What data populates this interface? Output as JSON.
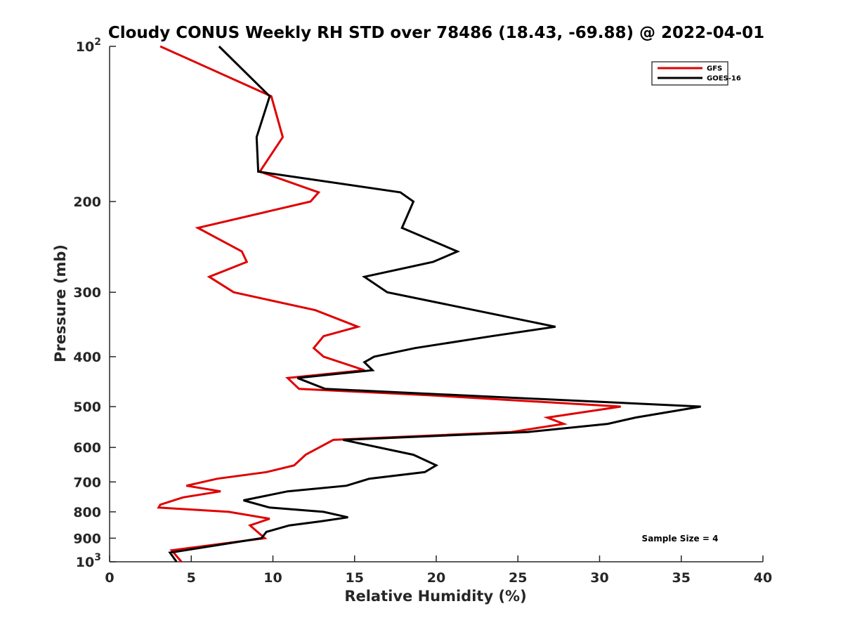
{
  "chart_data": {
    "type": "line",
    "title": "Cloudy CONUS Weekly RH STD over 78486 (18.43, -69.88) @ 2022-04-01",
    "xlabel": "Relative Humidity (%)",
    "ylabel": "Pressure (mb)",
    "xlim": [
      0,
      40
    ],
    "ylim": [
      100,
      1000
    ],
    "y_scale": "log",
    "y_reversed": true,
    "grid": false,
    "legend_position": "top-right",
    "x_ticks": [
      {
        "value": 0,
        "label": "0"
      },
      {
        "value": 5,
        "label": "5"
      },
      {
        "value": 10,
        "label": "10"
      },
      {
        "value": 15,
        "label": "15"
      },
      {
        "value": 20,
        "label": "20"
      },
      {
        "value": 25,
        "label": "25"
      },
      {
        "value": 30,
        "label": "30"
      },
      {
        "value": 35,
        "label": "35"
      },
      {
        "value": 40,
        "label": "40"
      }
    ],
    "y_ticks": [
      {
        "value": 100,
        "base": "10",
        "exp": "2"
      },
      {
        "value": 200,
        "label": "200"
      },
      {
        "value": 300,
        "label": "300"
      },
      {
        "value": 400,
        "label": "400"
      },
      {
        "value": 500,
        "label": "500"
      },
      {
        "value": 600,
        "label": "600"
      },
      {
        "value": 700,
        "label": "700"
      },
      {
        "value": 800,
        "label": "800"
      },
      {
        "value": 900,
        "label": "900"
      },
      {
        "value": 1000,
        "base": "10",
        "exp": "3"
      }
    ],
    "series": [
      {
        "name": "GFS",
        "color": "#e00000",
        "points": [
          {
            "x": 3.1,
            "y": 100
          },
          {
            "x": 9.9,
            "y": 125
          },
          {
            "x": 10.6,
            "y": 150
          },
          {
            "x": 9.2,
            "y": 175
          },
          {
            "x": 12.8,
            "y": 192
          },
          {
            "x": 12.3,
            "y": 200
          },
          {
            "x": 5.4,
            "y": 225
          },
          {
            "x": 8.1,
            "y": 250
          },
          {
            "x": 8.4,
            "y": 262
          },
          {
            "x": 6.1,
            "y": 280
          },
          {
            "x": 7.6,
            "y": 300
          },
          {
            "x": 12.6,
            "y": 325
          },
          {
            "x": 15.2,
            "y": 350
          },
          {
            "x": 13.1,
            "y": 365
          },
          {
            "x": 12.5,
            "y": 385
          },
          {
            "x": 13.1,
            "y": 400
          },
          {
            "x": 15.6,
            "y": 425
          },
          {
            "x": 10.9,
            "y": 440
          },
          {
            "x": 11.6,
            "y": 462
          },
          {
            "x": 19.5,
            "y": 475
          },
          {
            "x": 31.3,
            "y": 500
          },
          {
            "x": 26.8,
            "y": 525
          },
          {
            "x": 27.8,
            "y": 540
          },
          {
            "x": 24.6,
            "y": 560
          },
          {
            "x": 13.7,
            "y": 580
          },
          {
            "x": 12.0,
            "y": 620
          },
          {
            "x": 11.3,
            "y": 650
          },
          {
            "x": 9.6,
            "y": 670
          },
          {
            "x": 6.6,
            "y": 690
          },
          {
            "x": 4.7,
            "y": 712
          },
          {
            "x": 6.8,
            "y": 730
          },
          {
            "x": 4.5,
            "y": 750
          },
          {
            "x": 3.1,
            "y": 775
          },
          {
            "x": 3.0,
            "y": 785
          },
          {
            "x": 7.3,
            "y": 800
          },
          {
            "x": 9.8,
            "y": 825
          },
          {
            "x": 8.6,
            "y": 850
          },
          {
            "x": 9.5,
            "y": 900
          },
          {
            "x": 3.8,
            "y": 950
          },
          {
            "x": 4.4,
            "y": 1000
          }
        ]
      },
      {
        "name": "GOES-16",
        "color": "#000000",
        "points": [
          {
            "x": 6.7,
            "y": 100
          },
          {
            "x": 9.8,
            "y": 125
          },
          {
            "x": 9.0,
            "y": 150
          },
          {
            "x": 9.1,
            "y": 175
          },
          {
            "x": 17.8,
            "y": 192
          },
          {
            "x": 18.6,
            "y": 200
          },
          {
            "x": 17.9,
            "y": 225
          },
          {
            "x": 21.3,
            "y": 250
          },
          {
            "x": 19.8,
            "y": 262
          },
          {
            "x": 15.6,
            "y": 280
          },
          {
            "x": 17.0,
            "y": 300
          },
          {
            "x": 27.3,
            "y": 350
          },
          {
            "x": 23.4,
            "y": 365
          },
          {
            "x": 18.7,
            "y": 385
          },
          {
            "x": 16.2,
            "y": 400
          },
          {
            "x": 15.6,
            "y": 410
          },
          {
            "x": 16.1,
            "y": 425
          },
          {
            "x": 11.5,
            "y": 440
          },
          {
            "x": 13.2,
            "y": 462
          },
          {
            "x": 36.2,
            "y": 500
          },
          {
            "x": 32.2,
            "y": 525
          },
          {
            "x": 30.5,
            "y": 540
          },
          {
            "x": 25.6,
            "y": 560
          },
          {
            "x": 14.3,
            "y": 580
          },
          {
            "x": 18.6,
            "y": 620
          },
          {
            "x": 20.0,
            "y": 650
          },
          {
            "x": 19.3,
            "y": 670
          },
          {
            "x": 15.9,
            "y": 690
          },
          {
            "x": 14.5,
            "y": 712
          },
          {
            "x": 10.9,
            "y": 730
          },
          {
            "x": 8.2,
            "y": 760
          },
          {
            "x": 9.8,
            "y": 785
          },
          {
            "x": 13.1,
            "y": 800
          },
          {
            "x": 14.6,
            "y": 820
          },
          {
            "x": 12.9,
            "y": 835
          },
          {
            "x": 11.0,
            "y": 850
          },
          {
            "x": 9.6,
            "y": 875
          },
          {
            "x": 9.3,
            "y": 900
          },
          {
            "x": 3.7,
            "y": 960
          },
          {
            "x": 4.1,
            "y": 1000
          }
        ]
      }
    ],
    "annotations": [
      {
        "text": "Sample Size = 4",
        "position": "bottom-right"
      }
    ]
  }
}
